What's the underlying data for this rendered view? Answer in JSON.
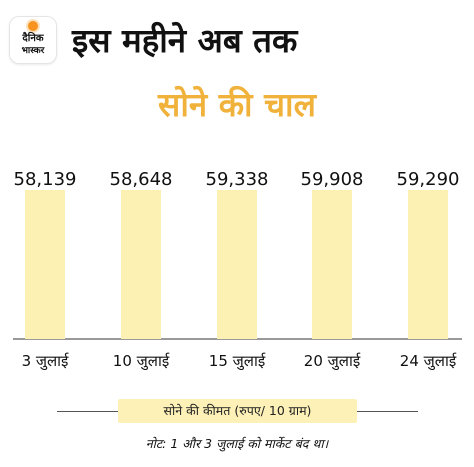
{
  "logo": {
    "line1": "दैनिक",
    "line2": "भास्कर"
  },
  "header": {
    "title": "इस महीने अब तक",
    "subtitle": "सोने की चाल"
  },
  "colors": {
    "bar": "#fdf0b3",
    "subtitle": "#f0b23a",
    "legend_bg": "#fdf1b8",
    "text": "#111111"
  },
  "legend": {
    "label": "सोने की कीमत (रुपए/ 10 ग्राम)"
  },
  "note": "नोट: 1 और 3 जुलाई को मार्केट बंद था।",
  "chart_data": {
    "type": "bar",
    "title": "सोने की चाल",
    "categories": [
      "3 जुलाई",
      "10 जुलाई",
      "15 जुलाई",
      "20 जुलाई",
      "24 जुलाई"
    ],
    "values": [
      58139,
      58648,
      59338,
      59908,
      59290
    ],
    "value_labels": [
      "58,139",
      "58,648",
      "59,338",
      "59,908",
      "59,290"
    ],
    "series": [
      {
        "name": "सोने की कीमत (रुपए/ 10 ग्राम)",
        "values": [
          58139,
          58648,
          59338,
          59908,
          59290
        ]
      }
    ],
    "xlabel": "",
    "ylabel": "",
    "grid": false,
    "legend_position": "bottom"
  }
}
